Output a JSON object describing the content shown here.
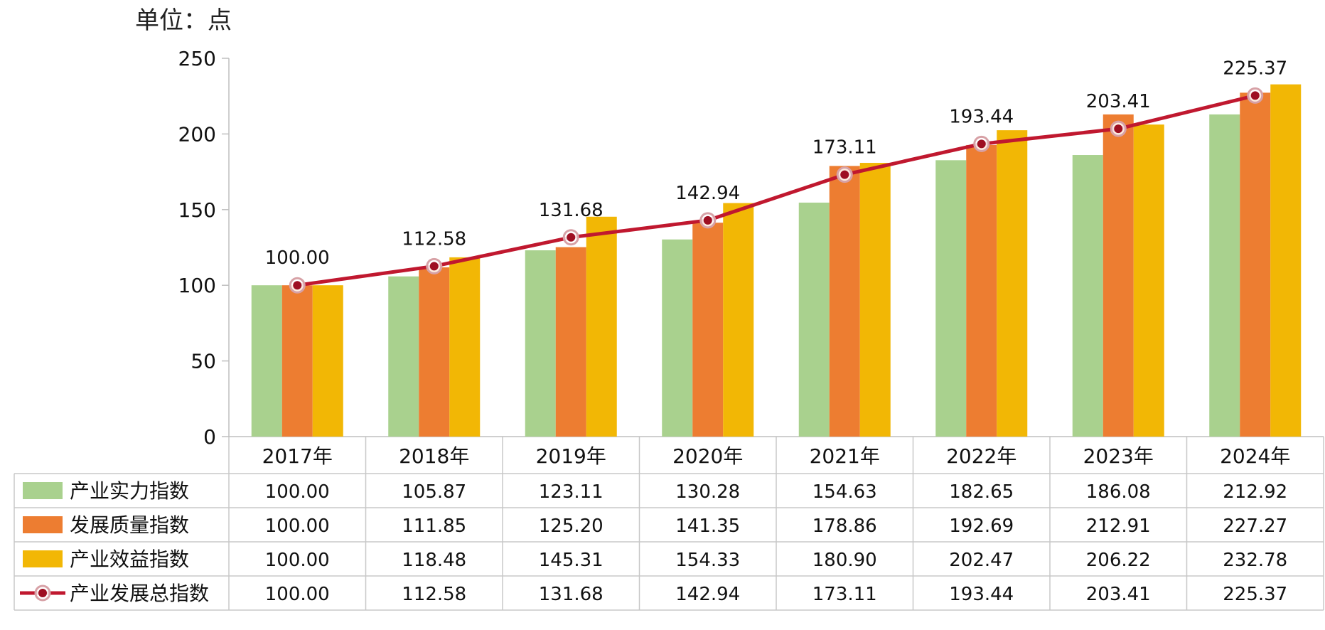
{
  "chart_data": {
    "type": "bar",
    "unit_label": "单位：点",
    "categories": [
      "2017年",
      "2018年",
      "2019年",
      "2020年",
      "2021年",
      "2022年",
      "2023年",
      "2024年"
    ],
    "series": [
      {
        "name": "产业实力指数",
        "kind": "bar",
        "color": "#A9D18E",
        "values": [
          100.0,
          105.87,
          123.11,
          130.28,
          154.63,
          182.65,
          186.08,
          212.92
        ]
      },
      {
        "name": "发展质量指数",
        "kind": "bar",
        "color": "#ED7D31",
        "values": [
          100.0,
          111.85,
          125.2,
          141.35,
          178.86,
          192.69,
          212.91,
          227.27
        ]
      },
      {
        "name": "产业效益指数",
        "kind": "bar",
        "color": "#F2B705",
        "values": [
          100.0,
          118.48,
          145.31,
          154.33,
          180.9,
          202.47,
          206.22,
          232.78
        ]
      },
      {
        "name": "产业发展总指数",
        "kind": "line",
        "color": "#C0182F",
        "values": [
          100.0,
          112.58,
          131.68,
          142.94,
          173.11,
          193.44,
          203.41,
          225.37
        ]
      }
    ],
    "ylim": [
      0,
      250
    ],
    "yticks": [
      0,
      50,
      100,
      150,
      200,
      250
    ],
    "data_labels_series": "产业发展总指数",
    "value_format_decimals": 2
  }
}
